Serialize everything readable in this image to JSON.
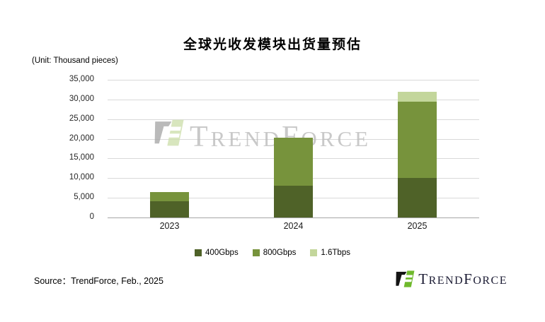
{
  "chart_data": {
    "type": "bar",
    "stacked": true,
    "title": "全球光收发模块出货量预估",
    "unit_label": "(Unit: Thousand pieces)",
    "categories": [
      "2023",
      "2024",
      "2025"
    ],
    "series": [
      {
        "name": "400Gbps",
        "color": "#4F6228",
        "values": [
          4200,
          8000,
          10000
        ]
      },
      {
        "name": "800Gbps",
        "color": "#77933C",
        "values": [
          2300,
          12300,
          19400
        ]
      },
      {
        "name": "1.6Tbps",
        "color": "#C3D69B",
        "values": [
          0,
          0,
          2500
        ]
      }
    ],
    "ylim": [
      0,
      35000
    ],
    "ytick_step": 5000,
    "ytick_labels": [
      "0",
      "5,000",
      "10,000",
      "15,000",
      "20,000",
      "25,000",
      "30,000",
      "35,000"
    ],
    "grid": "horizontal",
    "legend_position": "bottom"
  },
  "source_note": "Source：TrendForce, Feb., 2025",
  "watermark": {
    "p1": "T",
    "p2": "REND",
    "p3": "F",
    "p4": "ORCE"
  },
  "logo": {
    "p1": "T",
    "p2": "REND",
    "p3": "F",
    "p4": "ORCE"
  },
  "colors": {
    "grid": "#d9d9d9",
    "axis": "#a6a6a6",
    "watermark_text": "#bcbcbc",
    "logo_text": "#1c1c34",
    "logo_black": "#141414",
    "logo_green": "#6fb92c",
    "watermark_gray": "#a9a9a9",
    "watermark_green": "#cfe0ae"
  }
}
